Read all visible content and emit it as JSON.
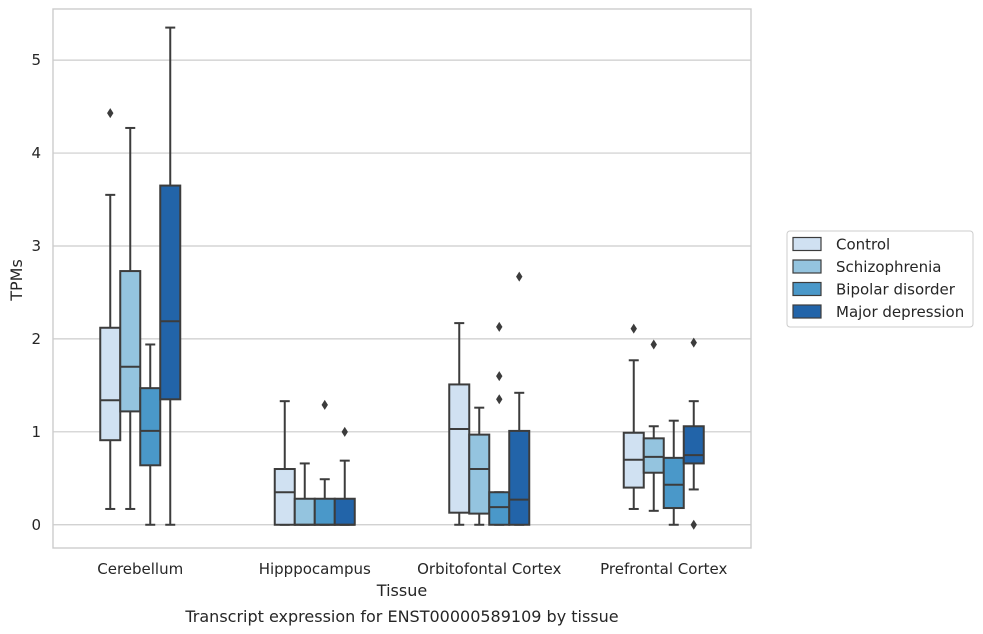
{
  "caption": "Transcript expression for ENST00000589109 by tissue",
  "chart_data": {
    "type": "box",
    "xlabel": "Tissue",
    "ylabel": "TPMs",
    "ylim": [
      -0.25,
      5.55
    ],
    "yticks": [
      0,
      1,
      2,
      3,
      4,
      5
    ],
    "grid": true,
    "legend_position": "right",
    "categories": [
      "Cerebellum",
      "Hipppocampus",
      "Orbitofontal Cortex",
      "Prefrontal Cortex"
    ],
    "series": [
      {
        "name": "Control",
        "color": "#d0e1f2",
        "boxes": [
          {
            "whislo": 0.17,
            "q1": 0.91,
            "med": 1.34,
            "q3": 2.12,
            "whishi": 3.55,
            "fliers": [
              4.43
            ]
          },
          {
            "whislo": 0.0,
            "q1": 0.0,
            "med": 0.35,
            "q3": 0.6,
            "whishi": 1.33,
            "fliers": []
          },
          {
            "whislo": 0.0,
            "q1": 0.13,
            "med": 1.03,
            "q3": 1.51,
            "whishi": 2.17,
            "fliers": []
          },
          {
            "whislo": 0.17,
            "q1": 0.4,
            "med": 0.7,
            "q3": 0.99,
            "whishi": 1.77,
            "fliers": [
              2.11
            ]
          }
        ]
      },
      {
        "name": "Schizophrenia",
        "color": "#94c4df",
        "boxes": [
          {
            "whislo": 0.17,
            "q1": 1.22,
            "med": 1.7,
            "q3": 2.73,
            "whishi": 4.27,
            "fliers": []
          },
          {
            "whislo": 0.0,
            "q1": 0.0,
            "med": 0.0,
            "q3": 0.28,
            "whishi": 0.66,
            "fliers": []
          },
          {
            "whislo": 0.0,
            "q1": 0.12,
            "med": 0.6,
            "q3": 0.97,
            "whishi": 1.26,
            "fliers": []
          },
          {
            "whislo": 0.15,
            "q1": 0.56,
            "med": 0.73,
            "q3": 0.93,
            "whishi": 1.06,
            "fliers": [
              1.94
            ]
          }
        ]
      },
      {
        "name": "Bipolar disorder",
        "color": "#4a98c9",
        "boxes": [
          {
            "whislo": 0.0,
            "q1": 0.64,
            "med": 1.01,
            "q3": 1.47,
            "whishi": 1.94,
            "fliers": []
          },
          {
            "whislo": 0.0,
            "q1": 0.0,
            "med": 0.0,
            "q3": 0.28,
            "whishi": 0.49,
            "fliers": [
              1.29
            ]
          },
          {
            "whislo": 0.0,
            "q1": 0.0,
            "med": 0.19,
            "q3": 0.35,
            "whishi": 0.35,
            "fliers": [
              1.35,
              1.6,
              2.13
            ]
          },
          {
            "whislo": 0.0,
            "q1": 0.18,
            "med": 0.43,
            "q3": 0.72,
            "whishi": 1.12,
            "fliers": []
          }
        ]
      },
      {
        "name": "Major depression",
        "color": "#2264a9",
        "boxes": [
          {
            "whislo": 0.0,
            "q1": 1.35,
            "med": 2.19,
            "q3": 3.65,
            "whishi": 5.35,
            "fliers": []
          },
          {
            "whislo": 0.0,
            "q1": 0.0,
            "med": 0.0,
            "q3": 0.28,
            "whishi": 0.69,
            "fliers": [
              1.0
            ]
          },
          {
            "whislo": 0.0,
            "q1": 0.0,
            "med": 0.27,
            "q3": 1.01,
            "whishi": 1.42,
            "fliers": [
              2.67
            ]
          },
          {
            "whislo": 0.38,
            "q1": 0.66,
            "med": 0.75,
            "q3": 1.06,
            "whishi": 1.33,
            "fliers": [
              0.0,
              1.96
            ]
          }
        ]
      }
    ]
  }
}
